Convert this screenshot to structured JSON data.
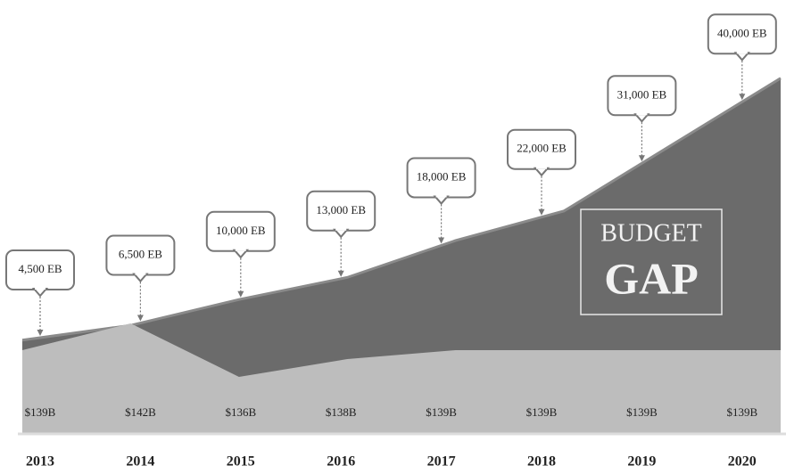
{
  "chart_data": {
    "type": "area",
    "categories": [
      "2013",
      "2014",
      "2015",
      "2016",
      "2017",
      "2018",
      "2019",
      "2020"
    ],
    "series": [
      {
        "color": "#6b6b6b",
        "values": [
          4500,
          6500,
          10000,
          13000,
          18000,
          22000,
          31000,
          40000
        ],
        "value_labels": [
          "4,500 EB",
          "6,500 EB",
          "10,000 EB",
          "13,000 EB",
          "18,000 EB",
          "22,000 EB",
          "31,000 EB",
          "40,000 EB"
        ]
      },
      {
        "color": "#bdbdbd",
        "values": [
          139,
          142,
          136,
          138,
          139,
          139,
          139,
          139
        ],
        "value_labels": [
          "$139B",
          "$142B",
          "$136B",
          "$138B",
          "$139B",
          "$139B",
          "$139B",
          "$139B"
        ]
      }
    ],
    "annotations": [
      "BUDGET",
      "GAP"
    ]
  }
}
